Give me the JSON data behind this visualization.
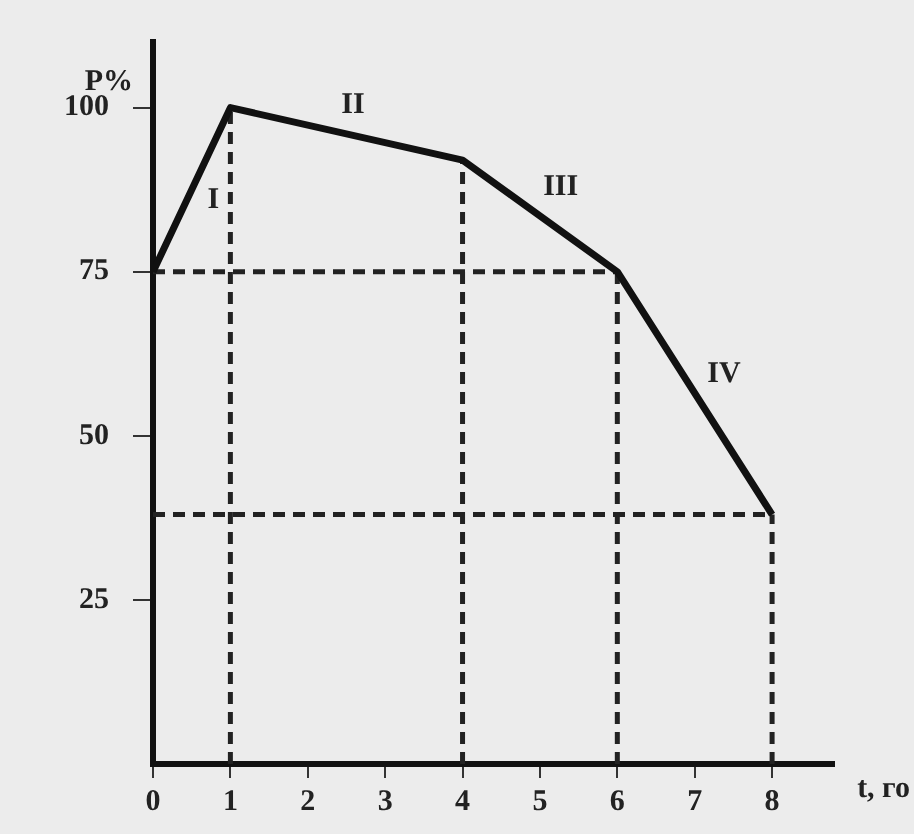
{
  "chart_data": {
    "type": "line",
    "xlabel": "t, го",
    "ylabel": "P%",
    "xlim": [
      0,
      8.8
    ],
    "ylim": [
      0,
      110
    ],
    "xticks": [
      0,
      1,
      2,
      3,
      4,
      5,
      6,
      7,
      8
    ],
    "yticks": [
      25,
      50,
      75,
      100
    ],
    "grid": false,
    "legend": false,
    "marker": "none",
    "series": [
      {
        "color": "#111111",
        "line_style": "solid",
        "x": [
          0,
          1,
          4,
          6,
          8
        ],
        "values": [
          75,
          100,
          92,
          75,
          38
        ]
      },
      {
        "color": "#222222",
        "line_style": "dashed",
        "x": [
          1,
          1
        ],
        "values": [
          0,
          100
        ]
      },
      {
        "color": "#222222",
        "line_style": "dashed",
        "x": [
          4,
          4
        ],
        "values": [
          0,
          92
        ]
      },
      {
        "color": "#222222",
        "line_style": "dashed",
        "x": [
          6,
          6
        ],
        "values": [
          0,
          75
        ]
      },
      {
        "color": "#222222",
        "line_style": "dashed",
        "x": [
          8,
          8
        ],
        "values": [
          0,
          38
        ]
      },
      {
        "color": "#222222",
        "line_style": "dashed",
        "x": [
          0,
          6
        ],
        "values": [
          75,
          75
        ]
      },
      {
        "color": "#222222",
        "line_style": "dashed",
        "x": [
          0,
          8
        ],
        "values": [
          38,
          38
        ]
      }
    ],
    "annotations": [
      "I",
      "II",
      "III",
      "IV"
    ]
  }
}
